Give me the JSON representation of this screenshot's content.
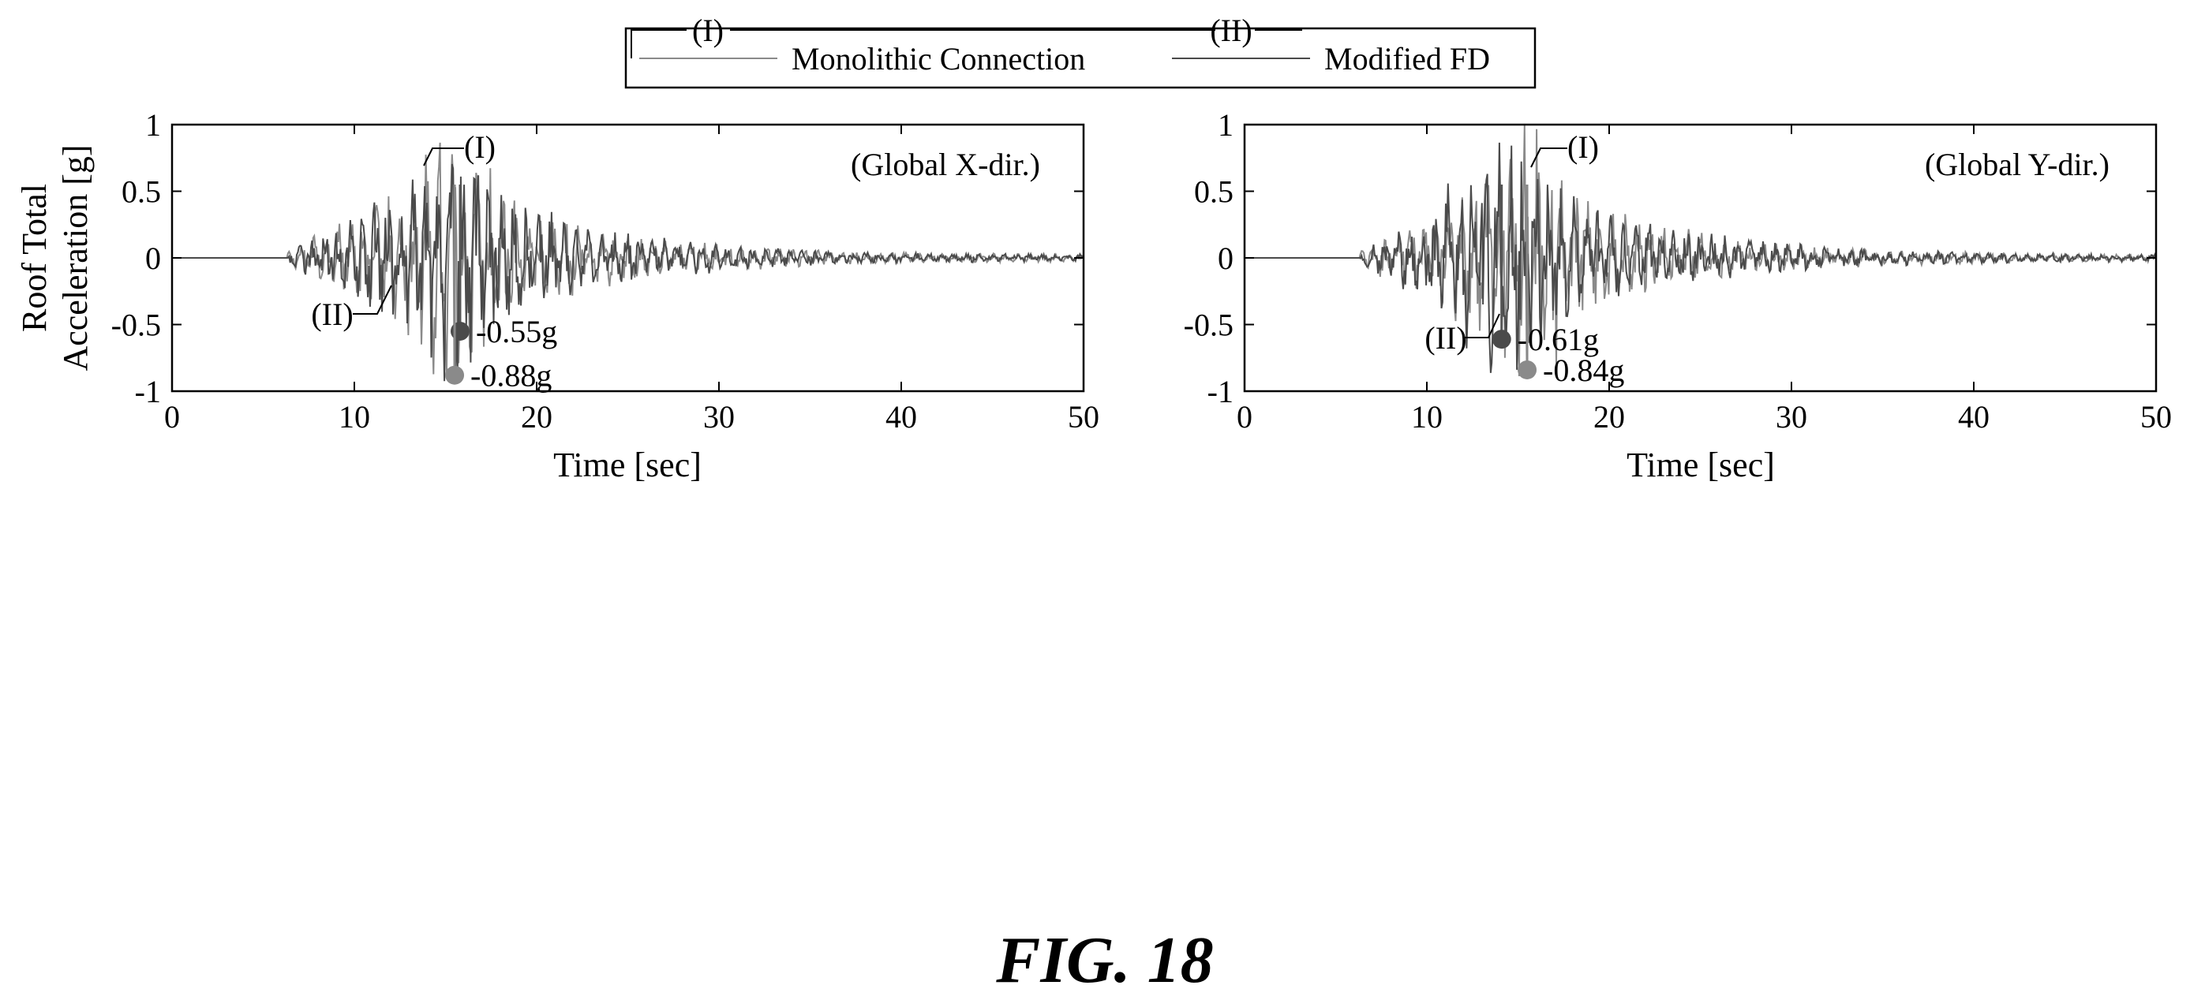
{
  "figure": {
    "caption": "FIG. 18"
  },
  "legend": {
    "entries": [
      {
        "tag": "(I)",
        "label": "Monolithic Connection",
        "color": "#8a8a8a"
      },
      {
        "tag": "(II)",
        "label": "Modified FD",
        "color": "#4a4a4a"
      }
    ]
  },
  "chart_data": [
    {
      "type": "line",
      "panel_label": "(Global X-dir.)",
      "ylabel_line1": "Roof Total",
      "ylabel_line2": "Acceleration [g]",
      "xlabel": "Time [sec]",
      "xlim": [
        0,
        50
      ],
      "ylim": [
        -1,
        1
      ],
      "xticks": [
        "0",
        "10",
        "20",
        "30",
        "40",
        "50"
      ],
      "yticks": [
        "1",
        "0.5",
        "0",
        "-0.5",
        "-1"
      ],
      "grid": false,
      "series": [
        {
          "tag": "(I)",
          "peak": {
            "x": 15.5,
            "y": -0.88,
            "label": "-0.88g"
          }
        },
        {
          "tag": "(II)",
          "peak": {
            "x": 15.8,
            "y": -0.55,
            "label": "-0.55g"
          }
        }
      ]
    },
    {
      "type": "line",
      "panel_label": "(Global Y-dir.)",
      "ylabel_line1": "",
      "ylabel_line2": "",
      "xlabel": "Time [sec]",
      "xlim": [
        0,
        50
      ],
      "ylim": [
        -1,
        1
      ],
      "xticks": [
        "0",
        "10",
        "20",
        "30",
        "40",
        "50"
      ],
      "yticks": [
        "1",
        "0.5",
        "0",
        "-0.5",
        "-1"
      ],
      "grid": false,
      "series": [
        {
          "tag": "(I)",
          "peak": {
            "x": 15.5,
            "y": -0.84,
            "label": "-0.84g"
          }
        },
        {
          "tag": "(II)",
          "peak": {
            "x": 14.1,
            "y": -0.61,
            "label": "-0.61g"
          }
        }
      ]
    }
  ]
}
